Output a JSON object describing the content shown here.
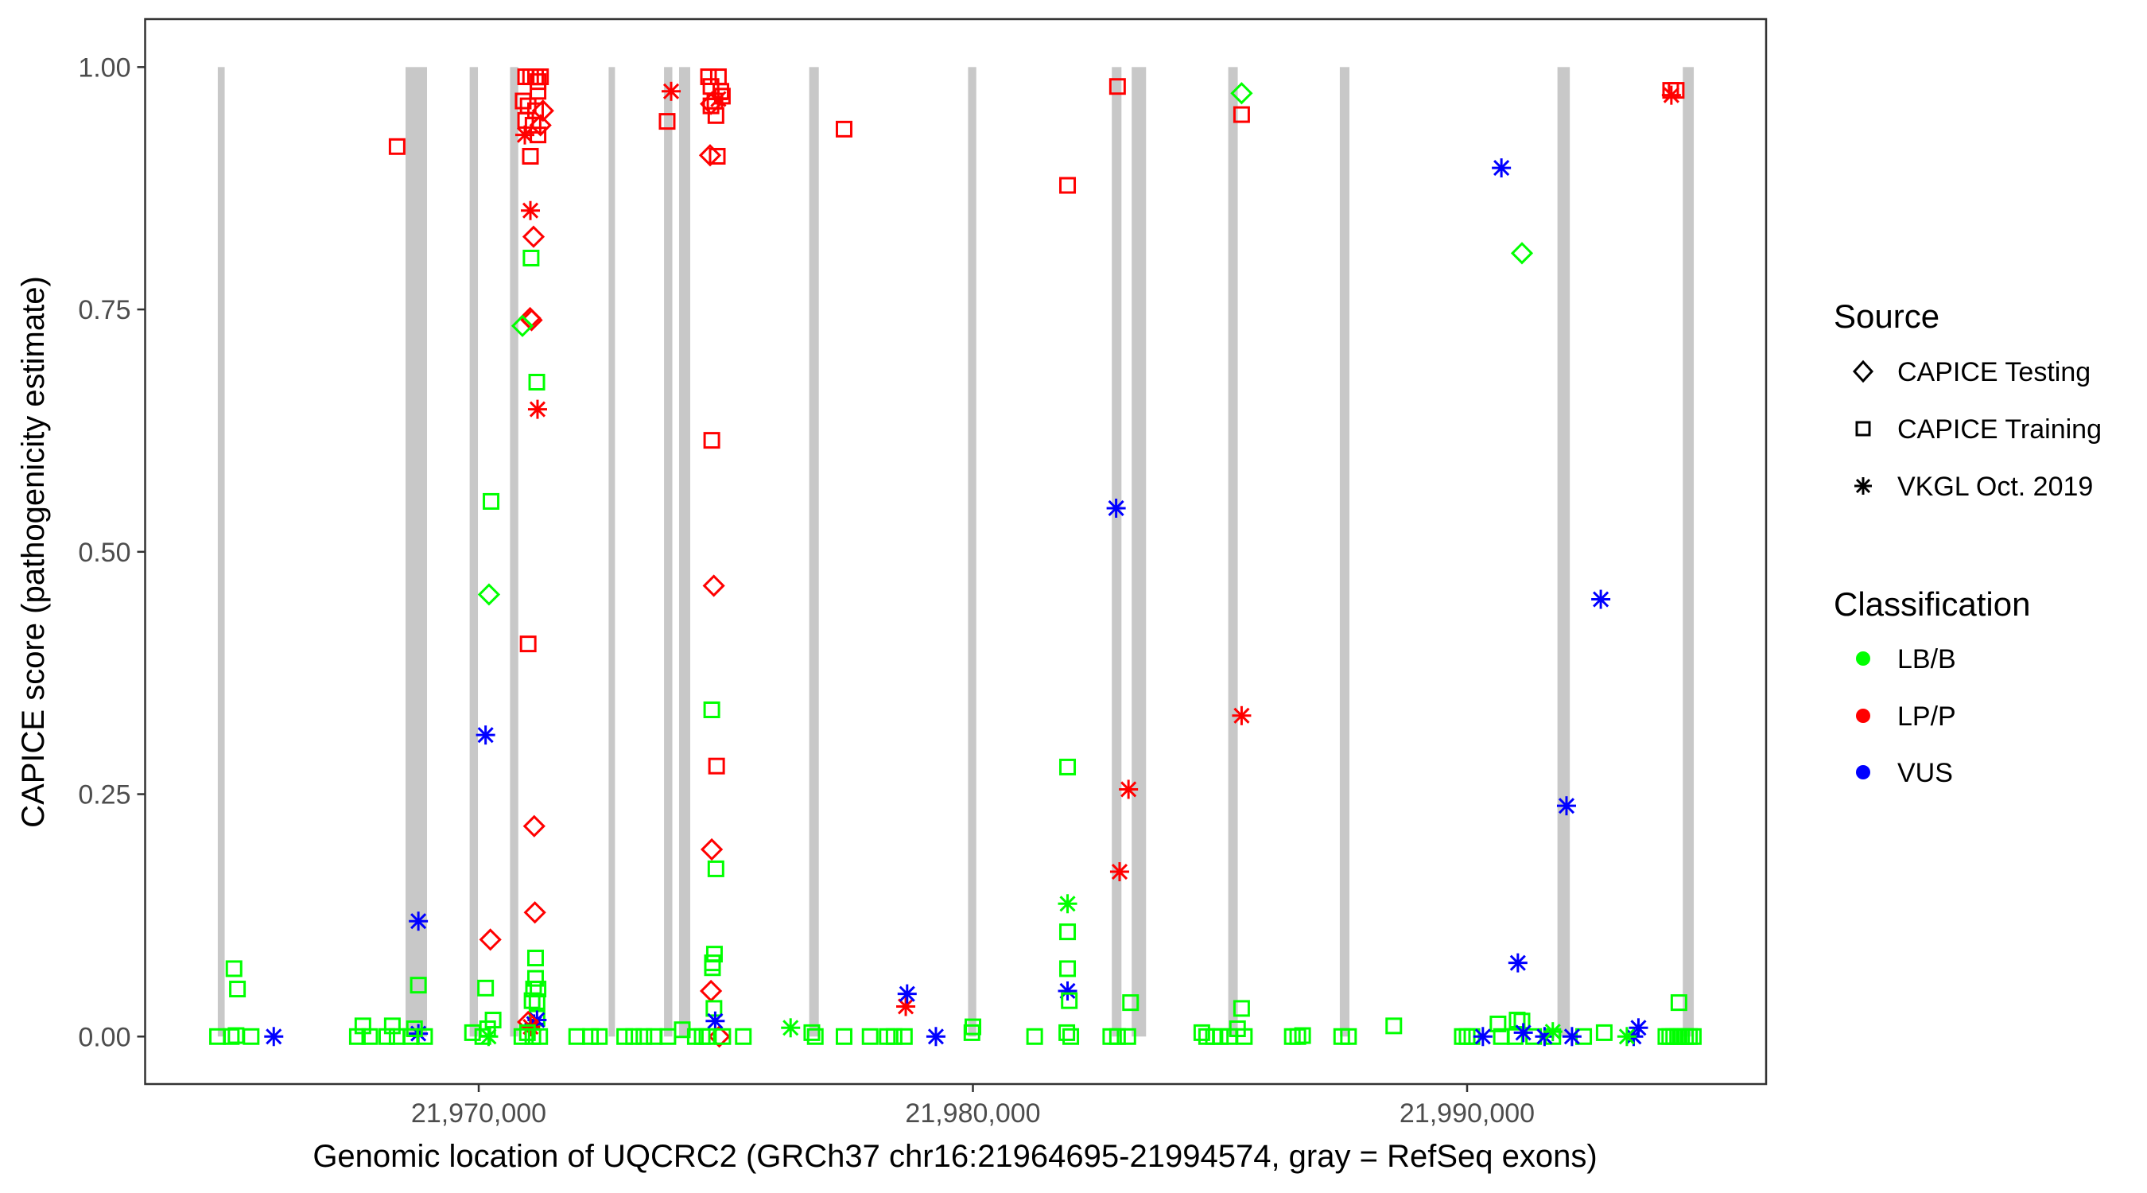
{
  "chart_data": {
    "type": "scatter",
    "title": "",
    "xlabel": "Genomic location of UQCRC2 (GRCh37 chr16:21964695-21994574, gray = RefSeq exons)",
    "ylabel": "CAPICE score (pathogenicity estimate)",
    "xlim": [
      21963250,
      21996050
    ],
    "ylim": [
      -0.049,
      1.0495
    ],
    "x_ticks": [
      21970000,
      21980000,
      21990000
    ],
    "x_tick_labels": [
      "21,970,000",
      "21,980,000",
      "21,990,000"
    ],
    "y_ticks": [
      0,
      0.25,
      0.5,
      0.75,
      1.0
    ],
    "y_tick_labels": [
      "0.00",
      "0.25",
      "0.50",
      "0.75",
      "1.00"
    ],
    "grid": false,
    "legend_placement": "right",
    "exon_color": "#c8c8c8",
    "exons": [
      [
        21964720,
        21964860
      ],
      [
        21968520,
        21968954
      ],
      [
        21969817,
        21969984
      ],
      [
        21970634,
        21970801
      ],
      [
        21972629,
        21972740
      ],
      [
        21973750,
        21973918
      ],
      [
        21974055,
        21974280
      ],
      [
        21976687,
        21976882
      ],
      [
        21979902,
        21980068
      ],
      [
        21982811,
        21983006
      ],
      [
        21983213,
        21983504
      ],
      [
        21985166,
        21985359
      ],
      [
        21987424,
        21987619
      ],
      [
        21991828,
        21992078
      ],
      [
        21994364,
        21994586
      ]
    ],
    "legend_source": {
      "title": "Source",
      "items": [
        {
          "label": "CAPICE Testing",
          "shape": "diamond"
        },
        {
          "label": "CAPICE Training",
          "shape": "square"
        },
        {
          "label": "VKGL Oct. 2019",
          "shape": "asterisk"
        }
      ]
    },
    "legend_class": {
      "title": "Classification",
      "items": [
        {
          "label": "LB/B",
          "color": "#00ff00"
        },
        {
          "label": "LP/P",
          "color": "#ff0000"
        },
        {
          "label": "VUS",
          "color": "#0000ff"
        }
      ]
    },
    "point_fields": [
      "position",
      "score",
      "source_index",
      "classification_index"
    ],
    "points": [
      [
        21970950,
        0.99,
        1,
        1
      ],
      [
        21971050,
        0.99,
        1,
        1
      ],
      [
        21971150,
        0.99,
        1,
        1
      ],
      [
        21971250,
        0.99,
        1,
        1
      ],
      [
        21971200,
        0.985,
        1,
        1
      ],
      [
        21970900,
        0.965,
        1,
        1
      ],
      [
        21971000,
        0.96,
        1,
        1
      ],
      [
        21971150,
        0.955,
        1,
        1
      ],
      [
        21971200,
        0.975,
        1,
        1
      ],
      [
        21970950,
        0.945,
        1,
        1
      ],
      [
        21971100,
        0.94,
        1,
        1
      ],
      [
        21971200,
        0.93,
        1,
        1
      ],
      [
        21971300,
        0.955,
        0,
        1
      ],
      [
        21971250,
        0.94,
        0,
        1
      ],
      [
        21970933,
        0.93,
        2,
        1
      ],
      [
        21971046,
        0.908,
        1,
        1
      ],
      [
        21971046,
        0.852,
        2,
        1
      ],
      [
        21971110,
        0.825,
        0,
        1
      ],
      [
        21971060,
        0.803,
        1,
        0
      ],
      [
        21971040,
        0.741,
        0,
        1
      ],
      [
        21971070,
        0.739,
        0,
        1
      ],
      [
        21970885,
        0.733,
        0,
        0
      ],
      [
        21971175,
        0.675,
        1,
        0
      ],
      [
        21971190,
        0.647,
        2,
        1
      ],
      [
        21968349,
        0.918,
        1,
        1
      ],
      [
        21973894,
        0.975,
        2,
        1
      ],
      [
        21973813,
        0.944,
        1,
        1
      ],
      [
        21974650,
        0.99,
        1,
        1
      ],
      [
        21974850,
        0.99,
        1,
        1
      ],
      [
        21974700,
        0.98,
        1,
        1
      ],
      [
        21974900,
        0.975,
        1,
        1
      ],
      [
        21974780,
        0.965,
        1,
        1
      ],
      [
        21974700,
        0.96,
        1,
        1
      ],
      [
        21974930,
        0.97,
        1,
        1
      ],
      [
        21974800,
        0.95,
        1,
        1
      ],
      [
        21974700,
        0.962,
        0,
        1
      ],
      [
        21974850,
        0.967,
        2,
        1
      ],
      [
        21974682,
        0.909,
        0,
        1
      ],
      [
        21974827,
        0.908,
        1,
        1
      ],
      [
        21971000,
        0.405,
        1,
        1
      ],
      [
        21970250,
        0.552,
        1,
        0
      ],
      [
        21970208,
        0.456,
        0,
        0
      ],
      [
        21970139,
        0.311,
        2,
        2
      ],
      [
        21971123,
        0.217,
        0,
        1
      ],
      [
        21971137,
        0.128,
        0,
        1
      ],
      [
        21970236,
        0.1,
        0,
        1
      ],
      [
        21968779,
        0.119,
        2,
        2
      ],
      [
        21968779,
        0.053,
        1,
        0
      ],
      [
        21965048,
        0.07,
        1,
        0
      ],
      [
        21965118,
        0.049,
        1,
        0
      ],
      [
        21970139,
        0.05,
        1,
        0
      ],
      [
        21971150,
        0.081,
        1,
        0
      ],
      [
        21971150,
        0.06,
        1,
        0
      ],
      [
        21971110,
        0.049,
        1,
        0
      ],
      [
        21971200,
        0.049,
        1,
        0
      ],
      [
        21971080,
        0.037,
        1,
        0
      ],
      [
        21971180,
        0.036,
        1,
        0
      ],
      [
        21971180,
        0.019,
        1,
        0
      ],
      [
        21971120,
        0.013,
        2,
        2
      ],
      [
        21971180,
        0.017,
        2,
        2
      ],
      [
        21971050,
        0.01,
        2,
        1
      ],
      [
        21971000,
        0.015,
        0,
        1
      ],
      [
        21974716,
        0.615,
        1,
        1
      ],
      [
        21974757,
        0.465,
        0,
        1
      ],
      [
        21974813,
        0.279,
        1,
        1
      ],
      [
        21974716,
        0.193,
        0,
        1
      ],
      [
        21974700,
        0.047,
        0,
        1
      ],
      [
        21974868,
        0.0,
        0,
        1
      ],
      [
        21974716,
        0.337,
        1,
        0
      ],
      [
        21974800,
        0.173,
        1,
        0
      ],
      [
        21974770,
        0.085,
        1,
        0
      ],
      [
        21974730,
        0.076,
        1,
        0
      ],
      [
        21974730,
        0.071,
        1,
        0
      ],
      [
        21974760,
        0.029,
        1,
        0
      ],
      [
        21974785,
        0.016,
        2,
        2
      ],
      [
        21977393,
        0.936,
        1,
        1
      ],
      [
        21976311,
        0.009,
        2,
        0
      ],
      [
        21978641,
        0.031,
        2,
        1
      ],
      [
        21978669,
        0.044,
        2,
        2
      ],
      [
        21979251,
        0.0,
        2,
        2
      ],
      [
        21965853,
        0.0,
        2,
        2
      ],
      [
        21968779,
        0.003,
        2,
        2
      ],
      [
        21980000,
        0.01,
        1,
        0
      ],
      [
        21979980,
        0.004,
        1,
        0
      ],
      [
        21981249,
        0.0,
        1,
        0
      ],
      [
        21964715,
        0.0,
        1,
        0
      ],
      [
        21964993,
        0.0,
        1,
        0
      ],
      [
        21965090,
        0.001,
        1,
        0
      ],
      [
        21965395,
        0.0,
        1,
        0
      ],
      [
        21967545,
        0.0,
        1,
        0
      ],
      [
        21967656,
        0.011,
        1,
        0
      ],
      [
        21967795,
        0.0,
        1,
        0
      ],
      [
        21968141,
        0.0,
        1,
        0
      ],
      [
        21968252,
        0.011,
        1,
        0
      ],
      [
        21968349,
        0.0,
        1,
        0
      ],
      [
        21968627,
        0.0,
        1,
        0
      ],
      [
        21968700,
        0.008,
        1,
        0
      ],
      [
        21968904,
        0.0,
        1,
        0
      ],
      [
        21969875,
        0.004,
        1,
        0
      ],
      [
        21970083,
        0.0,
        1,
        0
      ],
      [
        21970180,
        0.008,
        1,
        0
      ],
      [
        21970291,
        0.017,
        1,
        0
      ],
      [
        21970200,
        0.0,
        2,
        0
      ],
      [
        21970874,
        0.0,
        1,
        0
      ],
      [
        21970985,
        0.004,
        1,
        0
      ],
      [
        21971096,
        0.0,
        1,
        0
      ],
      [
        21971234,
        0.0,
        1,
        0
      ],
      [
        21971983,
        0.0,
        1,
        0
      ],
      [
        21972261,
        0.0,
        1,
        0
      ],
      [
        21972441,
        0.0,
        1,
        0
      ],
      [
        21972954,
        0.0,
        1,
        0
      ],
      [
        21973134,
        0.0,
        1,
        0
      ],
      [
        21973343,
        0.0,
        1,
        0
      ],
      [
        21973551,
        0.0,
        1,
        0
      ],
      [
        21973828,
        0.0,
        1,
        0
      ],
      [
        21974119,
        0.007,
        1,
        0
      ],
      [
        21974383,
        0.0,
        1,
        0
      ],
      [
        21974522,
        0.0,
        1,
        0
      ],
      [
        21974619,
        0.0,
        1,
        0
      ],
      [
        21974938,
        0.0,
        1,
        0
      ],
      [
        21975354,
        0.0,
        1,
        0
      ],
      [
        21976741,
        0.004,
        1,
        0
      ],
      [
        21976810,
        0.0,
        1,
        0
      ],
      [
        21977393,
        0.0,
        1,
        0
      ],
      [
        21977920,
        0.0,
        1,
        0
      ],
      [
        21978267,
        0.0,
        1,
        0
      ],
      [
        21978405,
        0.0,
        1,
        0
      ],
      [
        21978613,
        0.0,
        1,
        0
      ],
      [
        21981915,
        0.878,
        1,
        1
      ],
      [
        21981915,
        0.278,
        1,
        0
      ],
      [
        21981915,
        0.137,
        2,
        0
      ],
      [
        21981915,
        0.108,
        1,
        0
      ],
      [
        21981915,
        0.07,
        1,
        0
      ],
      [
        21981915,
        0.047,
        2,
        2
      ],
      [
        21981950,
        0.037,
        1,
        0
      ],
      [
        21981900,
        0.004,
        1,
        0
      ],
      [
        21981980,
        0.0,
        1,
        0
      ],
      [
        21982926,
        0.98,
        1,
        1
      ],
      [
        21982898,
        0.545,
        2,
        2
      ],
      [
        21983148,
        0.255,
        2,
        1
      ],
      [
        21982968,
        0.17,
        2,
        1
      ],
      [
        21983190,
        0.035,
        1,
        0
      ],
      [
        21982790,
        0.0,
        1,
        0
      ],
      [
        21982926,
        0.0,
        1,
        0
      ],
      [
        21983134,
        0.0,
        1,
        0
      ],
      [
        21985437,
        0.973,
        0,
        0
      ],
      [
        21985437,
        0.951,
        1,
        1
      ],
      [
        21985437,
        0.331,
        2,
        1
      ],
      [
        21985437,
        0.029,
        1,
        0
      ],
      [
        21984632,
        0.004,
        1,
        0
      ],
      [
        21984729,
        0.0,
        1,
        0
      ],
      [
        21984868,
        0.0,
        1,
        0
      ],
      [
        21985007,
        0.0,
        1,
        0
      ],
      [
        21985187,
        0.0,
        1,
        0
      ],
      [
        21985354,
        0.008,
        1,
        0
      ],
      [
        21985492,
        0.0,
        1,
        0
      ],
      [
        21986463,
        0.0,
        1,
        0
      ],
      [
        21986574,
        0.0,
        1,
        0
      ],
      [
        21986671,
        0.001,
        1,
        0
      ],
      [
        21987462,
        0.0,
        1,
        0
      ],
      [
        21987600,
        0.0,
        1,
        0
      ],
      [
        21988516,
        0.011,
        1,
        0
      ],
      [
        21990694,
        0.896,
        2,
        2
      ],
      [
        21991110,
        0.808,
        0,
        0
      ],
      [
        21992705,
        0.451,
        2,
        2
      ],
      [
        21992011,
        0.238,
        2,
        2
      ],
      [
        21991027,
        0.076,
        2,
        2
      ],
      [
        21989903,
        0.0,
        1,
        0
      ],
      [
        21990000,
        0.0,
        1,
        0
      ],
      [
        21990097,
        0.0,
        1,
        0
      ],
      [
        21990625,
        0.013,
        1,
        0
      ],
      [
        21990694,
        0.0,
        1,
        0
      ],
      [
        21991013,
        0.017,
        1,
        0
      ],
      [
        21991110,
        0.016,
        1,
        0
      ],
      [
        21990970,
        0.0,
        1,
        0
      ],
      [
        21991346,
        0.0,
        1,
        0
      ],
      [
        21991734,
        0.0,
        1,
        0
      ],
      [
        21992358,
        0.0,
        1,
        0
      ],
      [
        21992774,
        0.004,
        1,
        0
      ],
      [
        21990319,
        0.0,
        2,
        2
      ],
      [
        21991137,
        0.004,
        2,
        2
      ],
      [
        21991567,
        0.0,
        2,
        2
      ],
      [
        21992122,
        0.0,
        2,
        2
      ],
      [
        21993370,
        0.0,
        2,
        2
      ],
      [
        21993467,
        0.009,
        2,
        2
      ],
      [
        21991734,
        0.005,
        2,
        0
      ],
      [
        21993232,
        0.0,
        2,
        0
      ],
      [
        21994119,
        0.976,
        1,
        1
      ],
      [
        21994230,
        0.976,
        1,
        1
      ],
      [
        21994133,
        0.971,
        2,
        1
      ],
      [
        21994286,
        0.035,
        1,
        0
      ],
      [
        21994022,
        0.0,
        1,
        0
      ],
      [
        21994100,
        0.0,
        1,
        0
      ],
      [
        21994180,
        0.0,
        1,
        0
      ],
      [
        21994260,
        0.0,
        1,
        0
      ],
      [
        21994340,
        0.0,
        1,
        0
      ],
      [
        21994420,
        0.0,
        1,
        0
      ],
      [
        21994500,
        0.0,
        1,
        0
      ],
      [
        21994577,
        0.0,
        1,
        0
      ]
    ]
  }
}
